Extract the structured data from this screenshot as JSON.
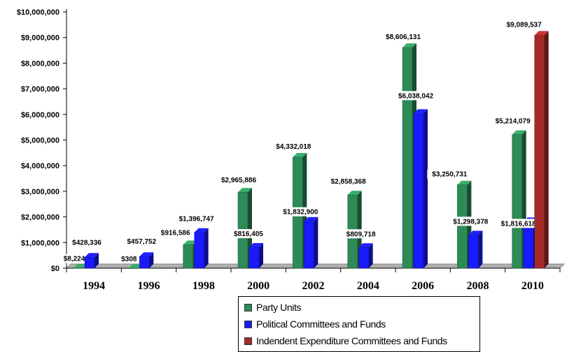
{
  "chart_data": {
    "type": "bar",
    "categories": [
      "1994",
      "1996",
      "1998",
      "2000",
      "2002",
      "2004",
      "2006",
      "2008",
      "2010"
    ],
    "series": [
      {
        "name": "Party Units",
        "color": "#2e8b57",
        "values": [
          8224,
          308,
          916586,
          2965886,
          4332018,
          2858368,
          8606131,
          3250731,
          5214079
        ],
        "labels": [
          "$8,224",
          "$308",
          "$916,586",
          "$2,965,886",
          "$4,332,018",
          "$2,858,368",
          "$8,606,131",
          "$3,250,731",
          "$5,214,079"
        ]
      },
      {
        "name": "Political Committees and Funds",
        "color": "#1a1aff",
        "values": [
          428336,
          457752,
          1396747,
          816405,
          1832900,
          809718,
          6038042,
          1298378,
          1816618
        ],
        "labels": [
          "$428,336",
          "$457,752",
          "$1,396,747",
          "$816,405",
          "$1,832,900",
          "$809,718",
          "$6,038,042",
          "$1,298,378",
          "$1,816,618"
        ]
      },
      {
        "name": "Indendent Expenditure Committees and Funds",
        "color": "#a52a2a",
        "values": [
          null,
          null,
          null,
          null,
          null,
          null,
          null,
          null,
          9089537
        ],
        "labels": [
          "",
          "",
          "",
          "",
          "",
          "",
          "",
          "",
          "$9,089,537"
        ]
      }
    ],
    "yticks": [
      "$0",
      "$1,000,000",
      "$2,000,000",
      "$3,000,000",
      "$4,000,000",
      "$5,000,000",
      "$6,000,000",
      "$7,000,000",
      "$8,000,000",
      "$9,000,000",
      "$10,000,000"
    ],
    "ylim": [
      0,
      10000000
    ],
    "grid": false,
    "legend_position": "bottom"
  }
}
